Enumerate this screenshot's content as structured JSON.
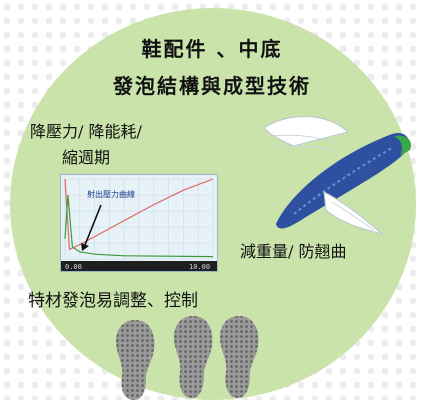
{
  "title": {
    "line1": "鞋配件 、中底",
    "line2": "發泡結構與成型技術"
  },
  "labels": {
    "reduce_pressure_line1": "降壓力/ 降能耗/",
    "reduce_pressure_line2": "縮週期",
    "weight_warp": "減重量/ 防翹曲",
    "foam_control": "特材發泡易調整、控制"
  },
  "chart_data": {
    "type": "line",
    "title": "",
    "annotation": "射出壓力曲線",
    "xlabel": "",
    "ylabel": "",
    "x_tick_labels": [
      "0.00",
      "10.00"
    ],
    "series": [
      {
        "color": "#e06666",
        "x": [
          0,
          0.3,
          1,
          2,
          4,
          6,
          8,
          10
        ],
        "y": [
          100,
          12,
          18,
          28,
          48,
          68,
          86,
          100
        ]
      },
      {
        "color": "#3a9a3a",
        "x": [
          0,
          0.2,
          0.5,
          1,
          2,
          4,
          10
        ],
        "y": [
          25,
          80,
          15,
          9,
          6,
          4,
          3
        ]
      }
    ],
    "grid": true
  },
  "colors": {
    "circle": "#c9e3ab",
    "shoe": "#2f4fa0",
    "shoe_accent": "#3aa844",
    "wing": "#ffffff",
    "sole": "#8a8a8a"
  },
  "icons": [
    "winged-shoe-icon",
    "shoe-sole-icon"
  ]
}
